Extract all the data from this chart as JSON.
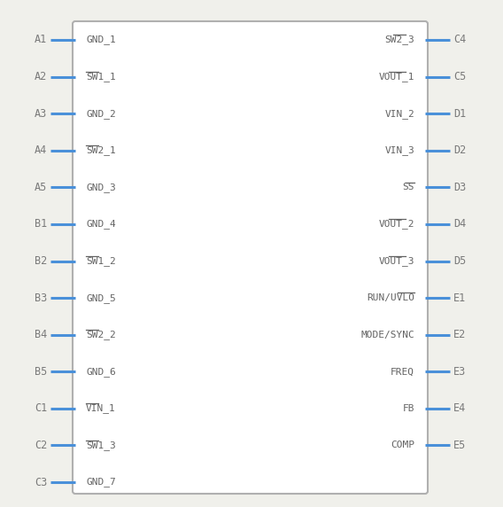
{
  "bg_color": "#f0f0eb",
  "box_color": "#b0b0b0",
  "box_bg": "#ffffff",
  "pin_color": "#4a90d9",
  "text_color": "#7a7a7a",
  "pin_text_color": "#636363",
  "left_pins": [
    {
      "label": "A1",
      "name": "GND_1",
      "has_bar": false
    },
    {
      "label": "A2",
      "name": "SW1_1",
      "has_bar": true
    },
    {
      "label": "A3",
      "name": "GND_2",
      "has_bar": false
    },
    {
      "label": "A4",
      "name": "SW2_1",
      "has_bar": true
    },
    {
      "label": "A5",
      "name": "GND_3",
      "has_bar": false
    },
    {
      "label": "B1",
      "name": "GND_4",
      "has_bar": false
    },
    {
      "label": "B2",
      "name": "SW1_2",
      "has_bar": true
    },
    {
      "label": "B3",
      "name": "GND_5",
      "has_bar": false
    },
    {
      "label": "B4",
      "name": "SW2_2",
      "has_bar": true
    },
    {
      "label": "B5",
      "name": "GND_6",
      "has_bar": false
    },
    {
      "label": "C1",
      "name": "VIN_1",
      "has_bar": true
    },
    {
      "label": "C2",
      "name": "SW1_3",
      "has_bar": true
    },
    {
      "label": "C3",
      "name": "GND_7",
      "has_bar": false
    }
  ],
  "right_pins": [
    {
      "label": "C4",
      "name": "SW2_3",
      "has_bar": true
    },
    {
      "label": "C5",
      "name": "VOUT_1",
      "has_bar": true
    },
    {
      "label": "D1",
      "name": "VIN_2",
      "has_bar": false
    },
    {
      "label": "D2",
      "name": "VIN_3",
      "has_bar": false
    },
    {
      "label": "D3",
      "name": "SS",
      "has_bar": true
    },
    {
      "label": "D4",
      "name": "VOUT_2",
      "has_bar": true
    },
    {
      "label": "D5",
      "name": "VOUT_3",
      "has_bar": true
    },
    {
      "label": "E1",
      "name": "RUN/UVLO",
      "has_bar": true
    },
    {
      "label": "E2",
      "name": "MODE/SYNC",
      "has_bar": false
    },
    {
      "label": "E3",
      "name": "FREQ",
      "has_bar": false
    },
    {
      "label": "E4",
      "name": "FB",
      "has_bar": false
    },
    {
      "label": "E5",
      "name": "COMP",
      "has_bar": false
    }
  ],
  "figw": 5.68,
  "figh": 5.72,
  "dpi": 100
}
